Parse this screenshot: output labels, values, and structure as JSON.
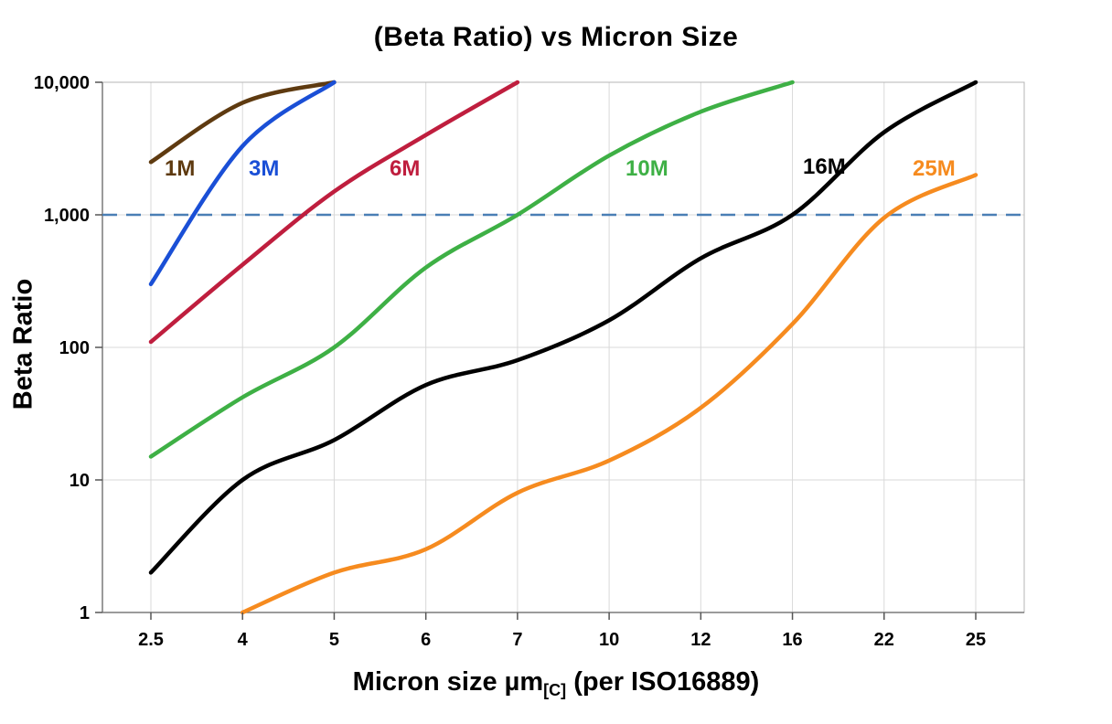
{
  "title": "(Beta Ratio) vs Micron Size",
  "y_axis": {
    "label": "Beta Ratio",
    "ticks": [
      {
        "value": 1,
        "label": "1"
      },
      {
        "value": 10,
        "label": "10"
      },
      {
        "value": 100,
        "label": "100"
      },
      {
        "value": 1000,
        "label": "1,000"
      },
      {
        "value": 10000,
        "label": "10,000"
      }
    ]
  },
  "x_axis": {
    "label_prefix": "Micron size µm",
    "label_sub": "[C]",
    "label_suffix": " (per ISO16889)",
    "categories": [
      "2.5",
      "4",
      "5",
      "6",
      "7",
      "10",
      "12",
      "16",
      "22",
      "25"
    ]
  },
  "reference_line": {
    "value": 1000,
    "color": "#4a7fb5"
  },
  "chart_data": {
    "type": "line",
    "title": "(Beta Ratio) vs Micron Size",
    "xlabel": "Micron size µm[C] (per ISO16889)",
    "ylabel": "Beta Ratio",
    "x_scale": "category",
    "y_scale": "log",
    "ylim": [
      1,
      10000
    ],
    "grid": true,
    "legend_position": "inline-labels",
    "categories": [
      2.5,
      4,
      5,
      6,
      7,
      10,
      12,
      16,
      22,
      25
    ],
    "series": [
      {
        "name": "1M",
        "color": "#5e3a10",
        "values": [
          2500,
          7000,
          10000,
          null,
          null,
          null,
          null,
          null,
          null,
          null
        ],
        "label_pos": [
          180,
          192
        ]
      },
      {
        "name": "3M",
        "color": "#1a4fd6",
        "values": [
          300,
          3300,
          10000,
          null,
          null,
          null,
          null,
          null,
          null,
          null
        ],
        "label_pos": [
          272,
          192
        ]
      },
      {
        "name": "6M",
        "color": "#bf1e3e",
        "values": [
          110,
          420,
          1500,
          4000,
          10000,
          null,
          null,
          null,
          null,
          null
        ],
        "label_pos": [
          426,
          192
        ]
      },
      {
        "name": "10M",
        "color": "#3eb045",
        "values": [
          15,
          42,
          100,
          400,
          1000,
          2800,
          6000,
          10000,
          null,
          null
        ],
        "label_pos": [
          684,
          192
        ]
      },
      {
        "name": "16M",
        "color": "#000000",
        "values": [
          2,
          10,
          20,
          52,
          80,
          160,
          470,
          1000,
          4200,
          10000
        ],
        "label_pos": [
          878,
          190
        ]
      },
      {
        "name": "25M",
        "color": "#f68b1f",
        "values": [
          null,
          1,
          2,
          3,
          8,
          14,
          35,
          150,
          950,
          2000
        ],
        "label_pos": [
          998,
          192
        ]
      }
    ]
  }
}
